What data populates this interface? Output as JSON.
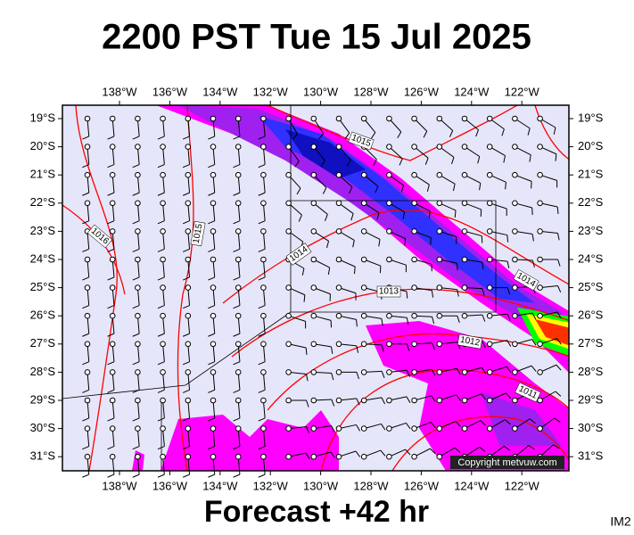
{
  "header": {
    "title": "2200 PST Tue 15 Jul 2025"
  },
  "map": {
    "longitudes": [
      "138°W",
      "136°W",
      "134°W",
      "132°W",
      "130°W",
      "128°W",
      "126°W",
      "124°W",
      "122°W"
    ],
    "latitudes": [
      "19°S",
      "20°S",
      "21°S",
      "22°S",
      "23°S",
      "24°S",
      "25°S",
      "26°S",
      "27°S",
      "28°S",
      "29°S",
      "30°S",
      "31°S"
    ],
    "isobar_labels": [
      "1015",
      "1016",
      "1015",
      "1014",
      "1013",
      "1012",
      "1014",
      "1011"
    ],
    "copyright": "Copyright metvuw.com"
  },
  "footer": {
    "caption": "Forecast +42 hr",
    "code": "IM2"
  }
}
